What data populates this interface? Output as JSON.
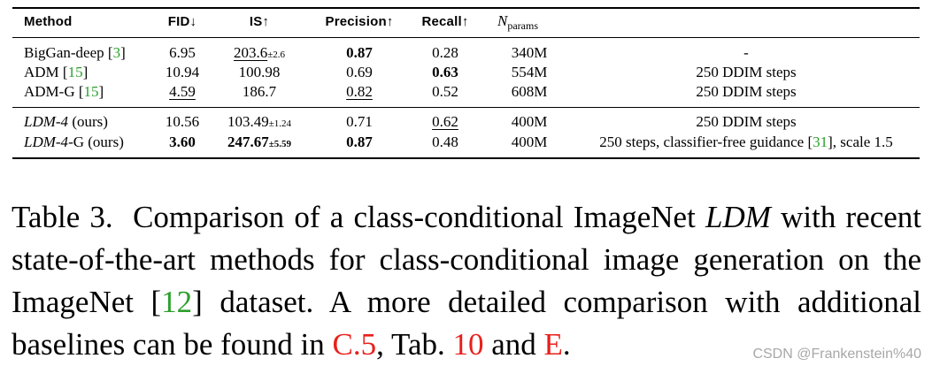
{
  "table": {
    "headers": {
      "method": "Method",
      "fid": "FID↓",
      "is": "IS↑",
      "precision": "Precision↑",
      "recall": "Recall↑",
      "nparams_main": "N",
      "nparams_sub": "params",
      "notes": ""
    },
    "rows": [
      {
        "method_name": "BigGan-deep",
        "method_ref": "3",
        "method_suffix": "",
        "fid": "6.95",
        "is_value": "203.6",
        "is_pm": "±2.6",
        "precision": "0.87",
        "recall": "0.28",
        "nparams": "340M",
        "note": "-"
      },
      {
        "method_name": "ADM",
        "method_ref": "15",
        "method_suffix": "",
        "fid": "10.94",
        "is_value": "100.98",
        "is_pm": "",
        "precision": "0.69",
        "recall": "0.63",
        "nparams": "554M",
        "note": "250 DDIM steps"
      },
      {
        "method_name": "ADM-G",
        "method_ref": "15",
        "method_suffix": "",
        "fid": "4.59",
        "is_value": "186.7",
        "is_pm": "",
        "precision": "0.82",
        "recall": "0.52",
        "nparams": "608M",
        "note": "250 DDIM steps"
      },
      {
        "method_name": "LDM-4",
        "method_ref": "",
        "method_suffix": " (ours)",
        "fid": "10.56",
        "is_value": "103.49",
        "is_pm": "±1.24",
        "precision": "0.71",
        "recall": "0.62",
        "nparams": "400M",
        "note": "250 DDIM steps"
      },
      {
        "method_name": "LDM-4",
        "method_ref": "",
        "method_suffix": "-G (ours)",
        "fid": "3.60",
        "is_value": "247.67",
        "is_pm": "±5.59",
        "precision": "0.87",
        "recall": "0.48",
        "nparams": "400M",
        "note_pre": "250 steps, classifier-free guidance [",
        "note_ref": "31",
        "note_post": "], scale 1.5"
      }
    ]
  },
  "caption": {
    "label": "Table 3.",
    "text_1": "Comparison of a class-conditional ImageNet ",
    "ldm": "LDM",
    "text_2": " with recent state-of-the-art methods for class-conditional image generation on the ImageNet [",
    "ref_12": "12",
    "text_3": "] dataset. A more detailed comparison with additional baselines can be found in ",
    "ref_c5": "C.5",
    "text_4": ", Tab. ",
    "ref_10": "10",
    "text_5": " and ",
    "ref_e": "E",
    "text_6": "."
  },
  "watermark": "CSDN @Frankenstein%40",
  "colors": {
    "citation_green": "#2ca02c",
    "link_red": "#e8201c"
  }
}
